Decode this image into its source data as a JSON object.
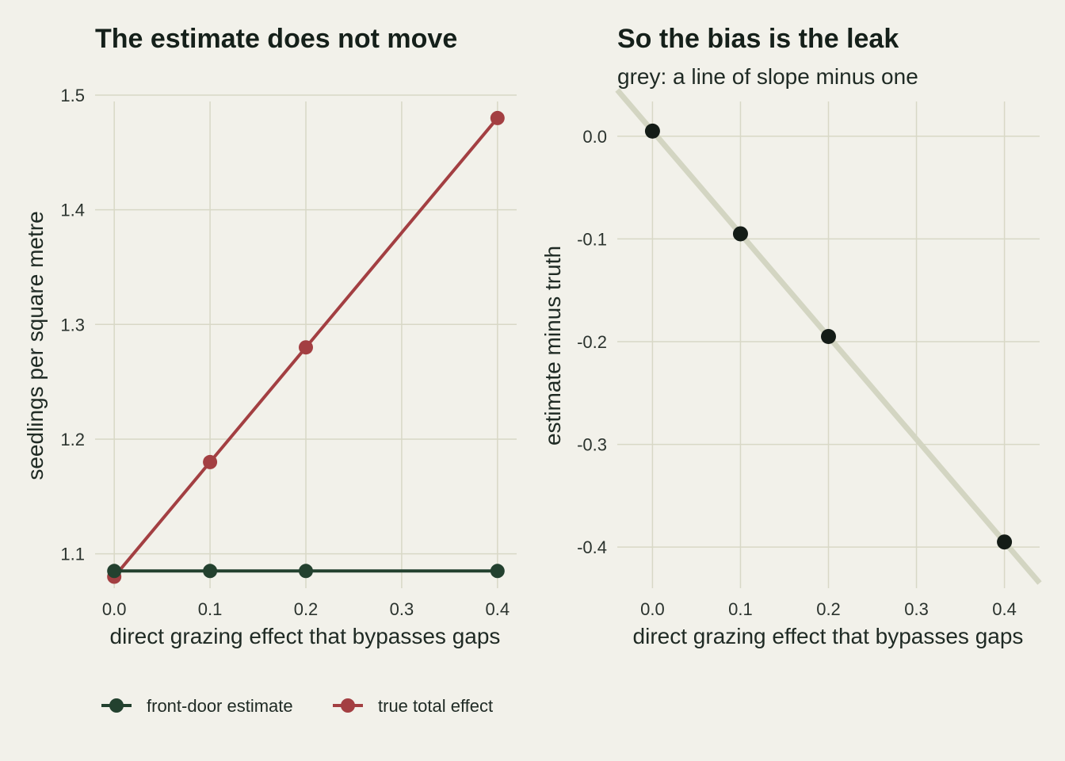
{
  "chart_data": [
    {
      "type": "line",
      "title": "The estimate does not move",
      "xlabel": "direct grazing effect that bypasses gaps",
      "ylabel": "seedlings per square metre",
      "xlim": [
        -0.02,
        0.42
      ],
      "ylim": [
        1.07,
        1.5
      ],
      "x_ticks": [
        0.0,
        0.1,
        0.2,
        0.3,
        0.4
      ],
      "x_tick_labels": [
        "0.0",
        "0.1",
        "0.2",
        "0.3",
        "0.4"
      ],
      "y_ticks": [
        1.1,
        1.2,
        1.3,
        1.4,
        1.5
      ],
      "y_tick_labels": [
        "1.1",
        "1.2",
        "1.3",
        "1.4",
        "1.5"
      ],
      "grid": true,
      "legend_position": "bottom",
      "series": [
        {
          "name": "front-door estimate",
          "color": "#23412f",
          "x": [
            0.0,
            0.1,
            0.2,
            0.4
          ],
          "y": [
            1.085,
            1.085,
            1.085,
            1.085
          ]
        },
        {
          "name": "true total effect",
          "color": "#a33f42",
          "x": [
            0.0,
            0.1,
            0.2,
            0.4
          ],
          "y": [
            1.08,
            1.18,
            1.28,
            1.48
          ]
        }
      ]
    },
    {
      "type": "scatter",
      "title": "So the bias is the leak",
      "subtitle": "grey: a line of slope minus one",
      "xlabel": "direct grazing effect that bypasses gaps",
      "ylabel": "estimate minus truth",
      "xlim": [
        -0.04,
        0.44
      ],
      "ylim": [
        -0.44,
        0.04
      ],
      "x_ticks": [
        0.0,
        0.1,
        0.2,
        0.3,
        0.4
      ],
      "x_tick_labels": [
        "0.0",
        "0.1",
        "0.2",
        "0.3",
        "0.4"
      ],
      "y_ticks": [
        0.0,
        -0.1,
        -0.2,
        -0.3,
        -0.4
      ],
      "y_tick_labels": [
        "0.0",
        "-0.1",
        "-0.2",
        "-0.3",
        "-0.4"
      ],
      "grid": true,
      "reference_line": {
        "slope": -1,
        "intercept": 0.005,
        "color": "#d3d5c2"
      },
      "points": {
        "color": "#141c17",
        "x": [
          0.0,
          0.1,
          0.2,
          0.4
        ],
        "y": [
          0.005,
          -0.095,
          -0.195,
          -0.395
        ]
      }
    }
  ]
}
